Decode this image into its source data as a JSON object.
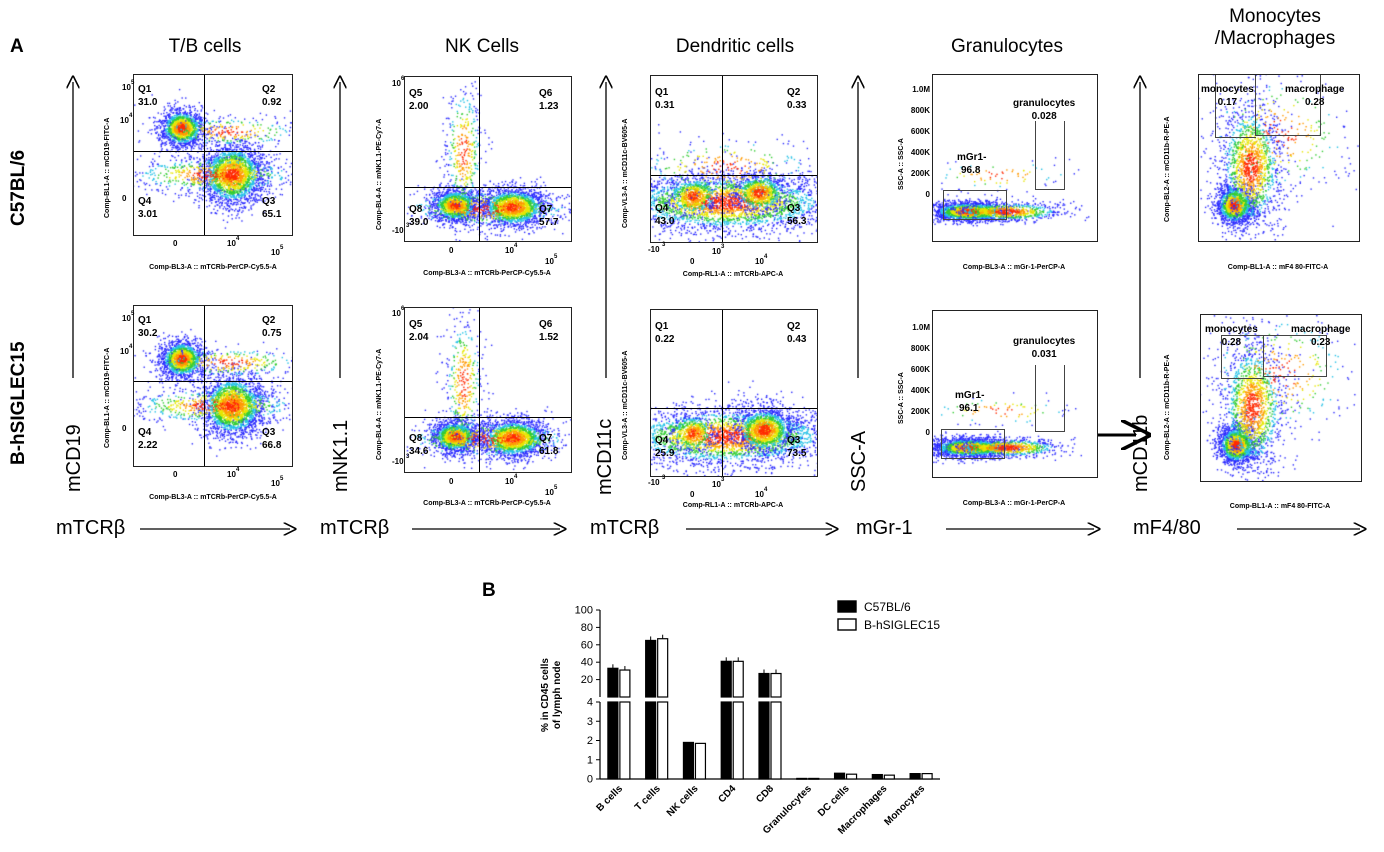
{
  "panel_a_label": "A",
  "panel_b_label": "B",
  "column_titles": [
    "T/B cells",
    "NK Cells",
    "Dendritic cells",
    "Granulocytes",
    "Monocytes\n/Macrophages"
  ],
  "row_labels": [
    "C57BL/6",
    "B-hSIGLEC15"
  ],
  "y_axis_names": [
    "mCD19",
    "mNK1.1",
    "mCD11c",
    "SSC-A",
    "mCD11b"
  ],
  "x_axis_names": [
    "mTCRβ",
    "mTCRβ",
    "mTCRβ",
    "mGr-1",
    "mF4/80"
  ],
  "plot_x_labels": [
    "Comp-BL3-A :: mTCRb-PerCP-Cy5.5-A",
    "Comp-BL3-A :: mTCRb-PerCP-Cy5.5-A",
    "Comp-RL1-A :: mTCRb-APC-A",
    "Comp-BL3-A :: mGr-1-PerCP-A",
    "Comp-BL1-A :: mF4 80-FITC-A"
  ],
  "plot_y_labels": [
    "Comp-BL1-A :: mCD19-FITC-A",
    "Comp-BL4-A :: mNK1.1-PE-Cy7-A",
    "Comp-VL3-A :: mCD11c-BV605-A",
    "SSC-A :: SSC-A",
    "Comp-BL2-A :: mCD11b-R-PE-A"
  ],
  "flow_plots": [
    {
      "row": 0,
      "col": 0,
      "quadrants": {
        "Q1": "31.0",
        "Q2": "0.92",
        "Q3": "65.1",
        "Q4": "3.01"
      }
    },
    {
      "row": 1,
      "col": 0,
      "quadrants": {
        "Q1": "30.2",
        "Q2": "0.75",
        "Q3": "66.8",
        "Q4": "2.22"
      }
    },
    {
      "row": 0,
      "col": 1,
      "quadrants": {
        "Q5": "2.00",
        "Q6": "1.23",
        "Q7": "57.7",
        "Q8": "39.0"
      }
    },
    {
      "row": 1,
      "col": 1,
      "quadrants": {
        "Q5": "2.04",
        "Q6": "1.52",
        "Q7": "61.8",
        "Q8": "34.6"
      }
    },
    {
      "row": 0,
      "col": 2,
      "quadrants": {
        "Q1": "0.31",
        "Q2": "0.33",
        "Q3": "56.3",
        "Q4": "43.0"
      }
    },
    {
      "row": 1,
      "col": 2,
      "quadrants": {
        "Q1": "0.22",
        "Q2": "0.43",
        "Q3": "73.5",
        "Q4": "25.9"
      }
    },
    {
      "row": 0,
      "col": 3,
      "gates": {
        "mGr1-": "96.8",
        "granulocytes": "0.028"
      }
    },
    {
      "row": 1,
      "col": 3,
      "gates": {
        "mGr1-": "96.1",
        "granulocytes": "0.031"
      }
    },
    {
      "row": 0,
      "col": 4,
      "gates": {
        "monocytes": "0.17",
        "macrophage": "0.28"
      }
    },
    {
      "row": 1,
      "col": 4,
      "gates": {
        "monocytes": "0.28",
        "macrophage": "0.23"
      }
    }
  ],
  "ssc_ticks": [
    "1.0M",
    "800K",
    "600K",
    "400K",
    "200K",
    "0"
  ],
  "chart_data": {
    "type": "bar",
    "categories": [
      "B cells",
      "T cells",
      "NK cells",
      "CD4",
      "CD8",
      "Granulocytes",
      "DC cells",
      "Macrophages",
      "Monocytes"
    ],
    "series": [
      {
        "name": "C57BL/6",
        "values": [
          33,
          65,
          1.9,
          41,
          27,
          0.03,
          0.3,
          0.23,
          0.28
        ]
      },
      {
        "name": "B-hSIGLEC15",
        "values": [
          31,
          67,
          1.85,
          41,
          27,
          0.03,
          0.25,
          0.2,
          0.28
        ]
      }
    ],
    "ylabel": "% in CD45 cells\nof lymph node",
    "y_ticks_lower": [
      0,
      1,
      2,
      3,
      4
    ],
    "y_ticks_upper": [
      20,
      40,
      60,
      80,
      100
    ],
    "legend_position": "top-right",
    "colors": {
      "C57BL/6": "#000000",
      "B-hSIGLEC15": "#ffffff"
    }
  }
}
